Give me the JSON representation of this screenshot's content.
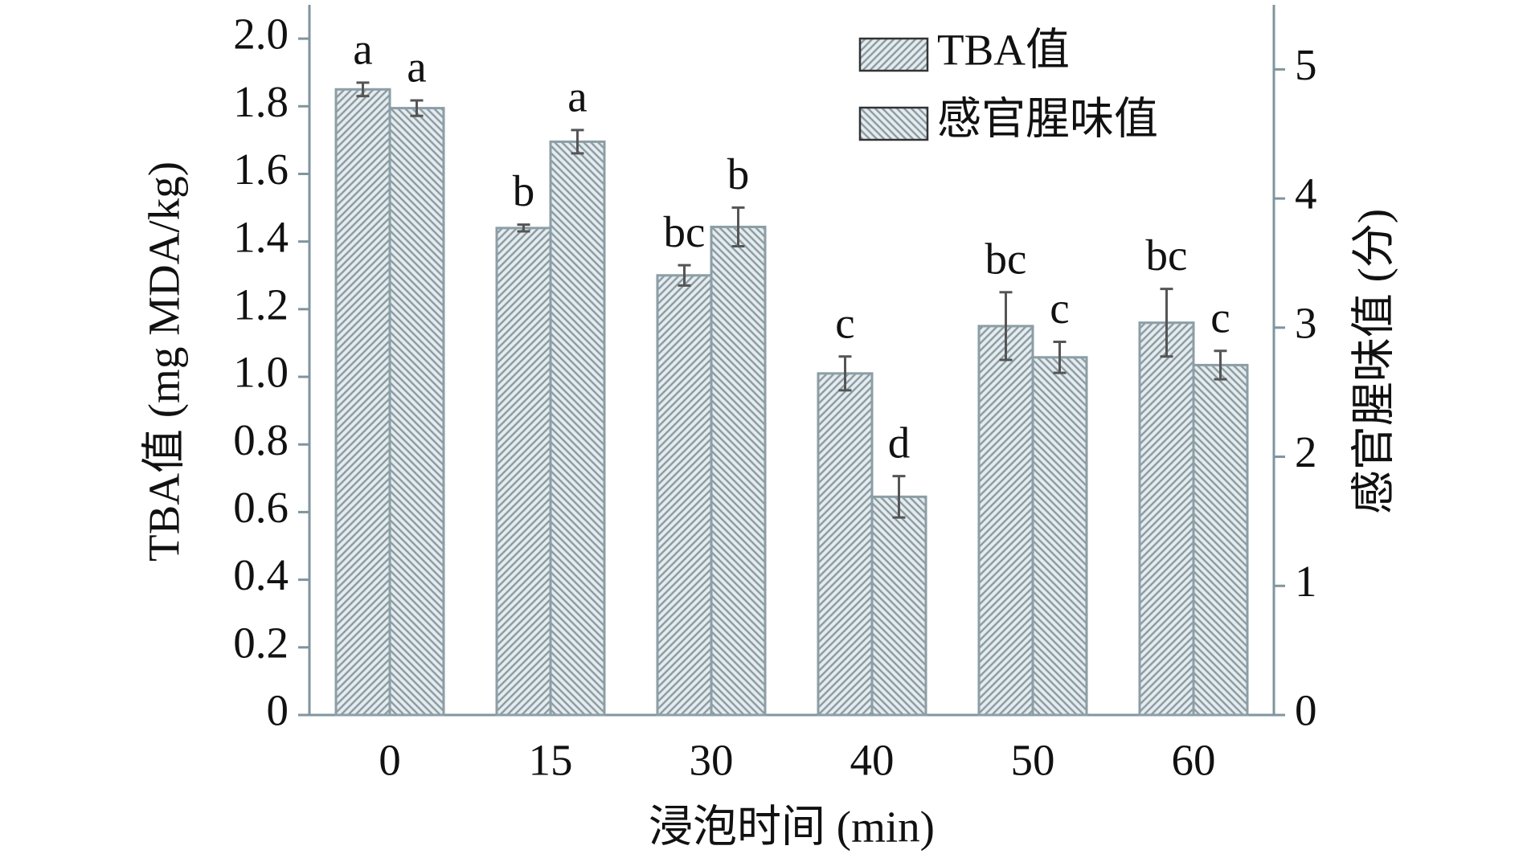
{
  "chart_data": {
    "type": "bar",
    "x_label": "浸泡时间 (min)",
    "y_label": "TBA值 (mg MDA/kg)",
    "y2_label": "感官腥味值 (分)",
    "categories": [
      "0",
      "15",
      "30",
      "40",
      "50",
      "60"
    ],
    "ylim": [
      0,
      2.1
    ],
    "yticks": [
      0,
      0.2,
      0.4,
      0.6,
      0.8,
      {
        "value": 1,
        "label": "1.0"
      },
      1.2,
      1.4,
      1.6,
      1.8,
      {
        "value": 2,
        "label": "2.0"
      }
    ],
    "y2lim": [
      0,
      5.5
    ],
    "y2ticks": [
      0,
      1,
      2,
      3,
      4,
      5
    ],
    "legend": "upper right",
    "series": [
      {
        "name": "TBA值",
        "color": "#8c9ea6",
        "hatch": "/",
        "values": [
          1.85,
          1.44,
          1.3,
          1.01,
          1.15,
          1.16
        ],
        "errors": [
          0.02,
          0.01,
          0.03,
          0.05,
          0.1,
          0.1
        ],
        "labels": [
          "a",
          "b",
          "bc",
          "c",
          "bc",
          "bc"
        ]
      },
      {
        "name": "感官腥味值",
        "color": "#8c9ea6",
        "hatch": "\\",
        "axis": "y2",
        "values": [
          4.7,
          4.44,
          3.78,
          1.69,
          2.77,
          2.71
        ],
        "errors": [
          0.06,
          0.09,
          0.15,
          0.16,
          0.12,
          0.11
        ],
        "labels": [
          "a",
          "a",
          "b",
          "d",
          "c",
          "c"
        ]
      }
    ]
  }
}
